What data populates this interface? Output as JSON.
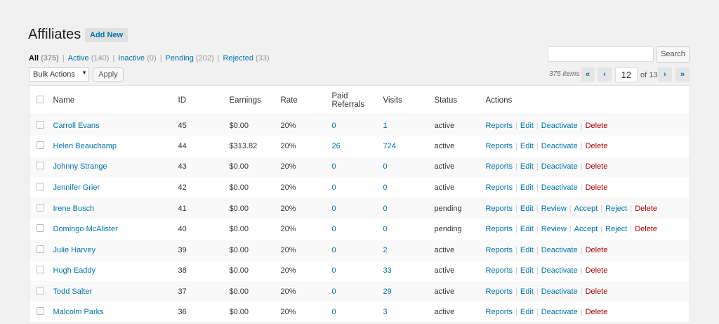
{
  "header": {
    "title": "Affiliates",
    "add_new": "Add New"
  },
  "filters": [
    {
      "label": "All",
      "count": "(375)",
      "current": true
    },
    {
      "label": "Active",
      "count": "(140)"
    },
    {
      "label": "Inactive",
      "count": "(0)"
    },
    {
      "label": "Pending",
      "count": "(202)"
    },
    {
      "label": "Rejected",
      "count": "(33)"
    }
  ],
  "bulk": {
    "selected": "Bulk Actions",
    "apply": "Apply"
  },
  "search": {
    "value": "",
    "button": "Search"
  },
  "pagination": {
    "items": "375 items",
    "first": "«",
    "prev": "‹",
    "current": "12",
    "of": "of 13",
    "next": "›",
    "last": "»"
  },
  "columns": [
    "Name",
    "ID",
    "Earnings",
    "Rate",
    "Paid Referrals",
    "Visits",
    "Status",
    "Actions"
  ],
  "rows": [
    {
      "name": "Carroll Evans",
      "id": "45",
      "earnings": "$0.00",
      "rate": "20%",
      "paid": "0",
      "visits": "1",
      "status": "active",
      "actions": [
        "Reports",
        "Edit",
        "Deactivate",
        "Delete"
      ]
    },
    {
      "name": "Helen Beauchamp",
      "id": "44",
      "earnings": "$313.82",
      "rate": "20%",
      "paid": "26",
      "visits": "724",
      "status": "active",
      "actions": [
        "Reports",
        "Edit",
        "Deactivate",
        "Delete"
      ]
    },
    {
      "name": "Johnny Strange",
      "id": "43",
      "earnings": "$0.00",
      "rate": "20%",
      "paid": "0",
      "visits": "0",
      "status": "active",
      "actions": [
        "Reports",
        "Edit",
        "Deactivate",
        "Delete"
      ]
    },
    {
      "name": "Jennifer Grier",
      "id": "42",
      "earnings": "$0.00",
      "rate": "20%",
      "paid": "0",
      "visits": "0",
      "status": "active",
      "actions": [
        "Reports",
        "Edit",
        "Deactivate",
        "Delete"
      ]
    },
    {
      "name": "Irene Busch",
      "id": "41",
      "earnings": "$0.00",
      "rate": "20%",
      "paid": "0",
      "visits": "0",
      "status": "pending",
      "actions": [
        "Reports",
        "Edit",
        "Review",
        "Accept",
        "Reject",
        "Delete"
      ]
    },
    {
      "name": "Domingo McAlister",
      "id": "40",
      "earnings": "$0.00",
      "rate": "20%",
      "paid": "0",
      "visits": "0",
      "status": "pending",
      "actions": [
        "Reports",
        "Edit",
        "Review",
        "Accept",
        "Reject",
        "Delete"
      ]
    },
    {
      "name": "Julie Harvey",
      "id": "39",
      "earnings": "$0.00",
      "rate": "20%",
      "paid": "0",
      "visits": "2",
      "status": "active",
      "actions": [
        "Reports",
        "Edit",
        "Deactivate",
        "Delete"
      ]
    },
    {
      "name": "Hugh Eaddy",
      "id": "38",
      "earnings": "$0.00",
      "rate": "20%",
      "paid": "0",
      "visits": "33",
      "status": "active",
      "actions": [
        "Reports",
        "Edit",
        "Deactivate",
        "Delete"
      ]
    },
    {
      "name": "Todd Salter",
      "id": "37",
      "earnings": "$0.00",
      "rate": "20%",
      "paid": "0",
      "visits": "29",
      "status": "active",
      "actions": [
        "Reports",
        "Edit",
        "Deactivate",
        "Delete"
      ]
    },
    {
      "name": "Malcolm Parks",
      "id": "36",
      "earnings": "$0.00",
      "rate": "20%",
      "paid": "0",
      "visits": "3",
      "status": "active",
      "actions": [
        "Reports",
        "Edit",
        "Deactivate",
        "Delete"
      ]
    }
  ]
}
